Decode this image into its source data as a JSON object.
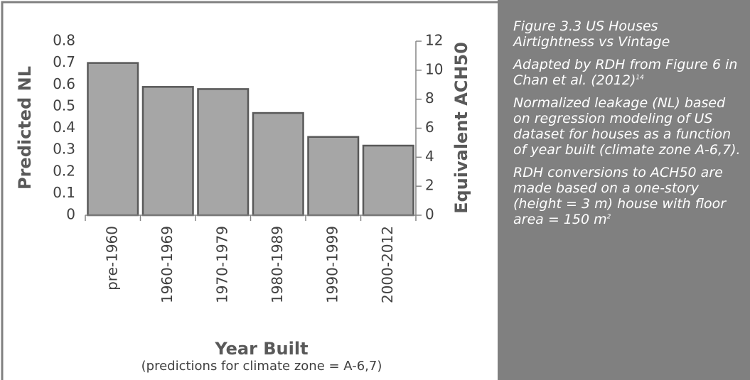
{
  "chart_data": {
    "type": "bar",
    "y_label": "Predicted NL",
    "y2_label": "Equivalent ACH50",
    "x_label": "Year Built",
    "x_sublabel": "(predictions for climate zone = A-6,7)",
    "categories": [
      "pre-1960",
      "1960-1969",
      "1970-1979",
      "1980-1989",
      "1990-1999",
      "2000-2012"
    ],
    "values": [
      0.7,
      0.59,
      0.58,
      0.47,
      0.36,
      0.32
    ],
    "color": "#a6a6a6",
    "ylim": [
      0,
      0.8
    ],
    "yticks": [
      0,
      0.1,
      0.2,
      0.3,
      0.4,
      0.5,
      0.6,
      0.7,
      0.8
    ],
    "y2lim": [
      0,
      12
    ],
    "y2ticks": [
      0,
      2,
      4,
      6,
      8,
      10,
      12
    ],
    "grid": false
  },
  "caption": [
    {
      "text": "Figure 3.3 US Houses Airtightness vs Vintage"
    },
    {
      "text": "Adapted by RDH from Figure 6 in Chan et al. (2012)",
      "sup": "14"
    },
    {
      "text": "Normalized leakage (NL) based on regression modeling of US dataset for houses as a function of year built (climate zone A-6,7)."
    },
    {
      "text": "RDH conversions to ACH50 are made based on a one-story (height = 3 m) house with floor area = 150 m",
      "sup": "2"
    }
  ]
}
